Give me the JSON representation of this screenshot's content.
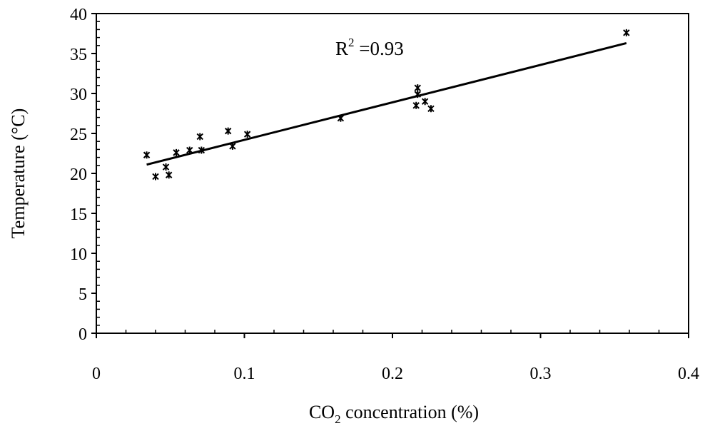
{
  "chart_data": {
    "type": "scatter",
    "xlabel": {
      "main": "CO",
      "sub": "2",
      "rest": " concentration (%)"
    },
    "ylabel": "Temperature (°C)",
    "xlim": [
      0,
      0.4
    ],
    "ylim": [
      0,
      40
    ],
    "x_ticks": [
      0,
      0.1,
      0.2,
      0.3,
      0.4
    ],
    "x_tick_labels": [
      "0",
      "0.1",
      "0.2",
      "0.3",
      "0.4"
    ],
    "y_ticks": [
      0,
      5,
      10,
      15,
      20,
      25,
      30,
      35,
      40
    ],
    "y_tick_labels": [
      "0",
      "5",
      "10",
      "15",
      "20",
      "25",
      "30",
      "35",
      "40"
    ],
    "grid": false,
    "points": [
      {
        "x": 0.034,
        "y": 22.3
      },
      {
        "x": 0.04,
        "y": 19.6
      },
      {
        "x": 0.047,
        "y": 20.8
      },
      {
        "x": 0.049,
        "y": 19.8
      },
      {
        "x": 0.054,
        "y": 22.6
      },
      {
        "x": 0.063,
        "y": 22.9
      },
      {
        "x": 0.07,
        "y": 24.6
      },
      {
        "x": 0.071,
        "y": 22.9
      },
      {
        "x": 0.089,
        "y": 25.3
      },
      {
        "x": 0.092,
        "y": 23.4
      },
      {
        "x": 0.102,
        "y": 24.9
      },
      {
        "x": 0.165,
        "y": 26.9
      },
      {
        "x": 0.216,
        "y": 28.5
      },
      {
        "x": 0.217,
        "y": 29.9
      },
      {
        "x": 0.217,
        "y": 30.7
      },
      {
        "x": 0.222,
        "y": 29.0
      },
      {
        "x": 0.226,
        "y": 28.1
      },
      {
        "x": 0.358,
        "y": 37.6
      }
    ],
    "trendline": {
      "x": [
        0.034,
        0.358
      ],
      "y": [
        21.1,
        36.3
      ]
    },
    "annotation": {
      "base": "R",
      "sup": "2",
      "rest": " =0.93"
    }
  }
}
